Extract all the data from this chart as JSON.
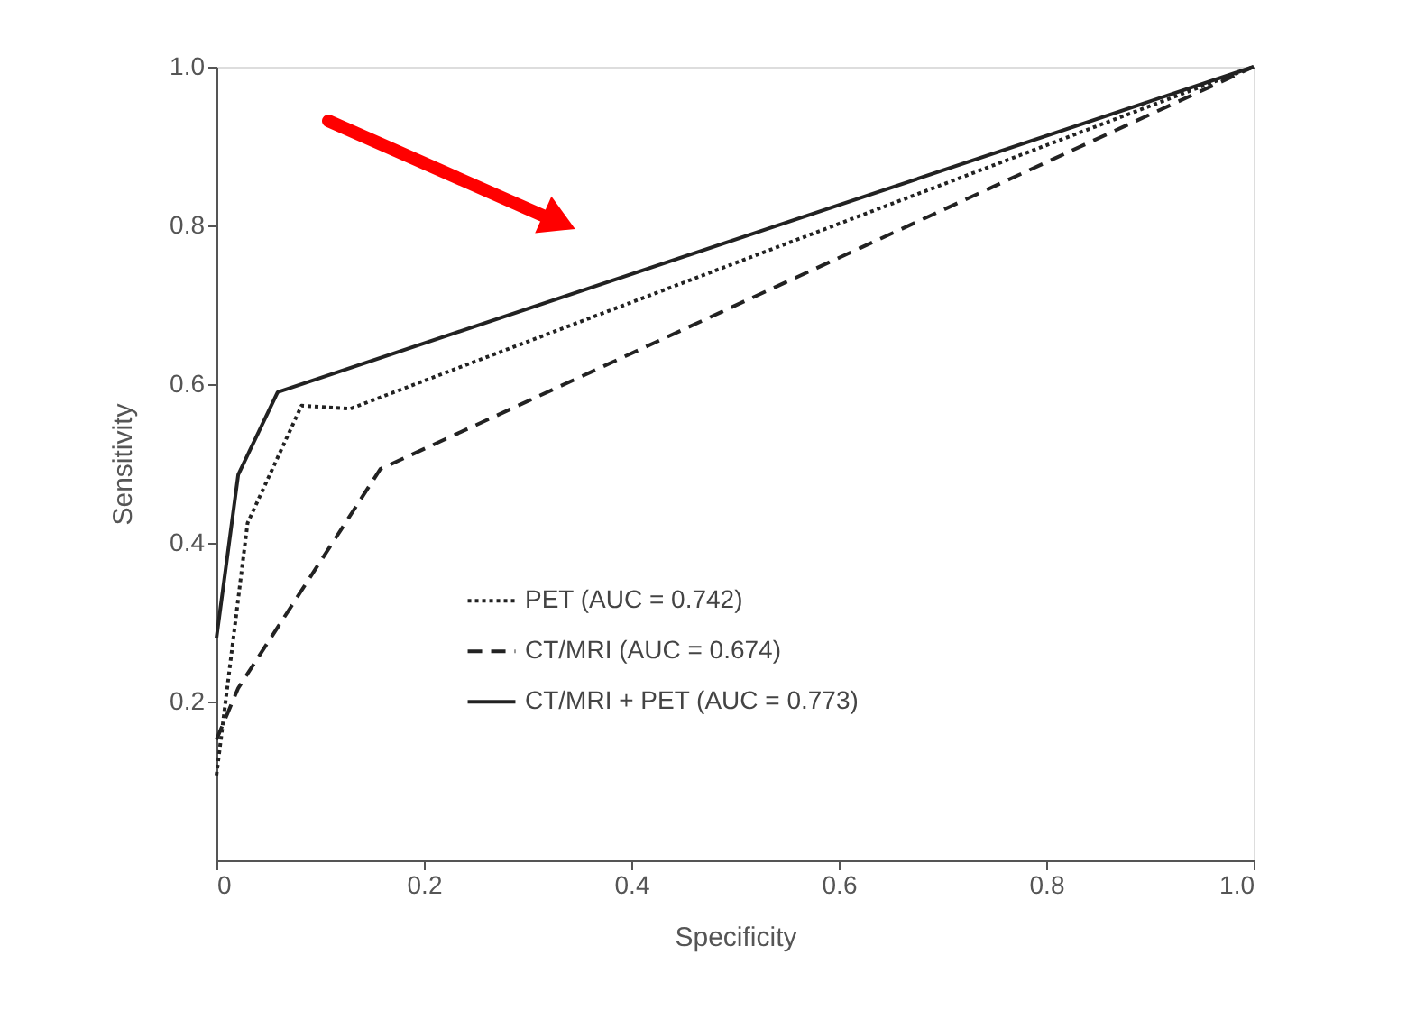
{
  "chart_data": {
    "type": "line",
    "xlabel": "Specificity",
    "ylabel": "Sensitivity",
    "xlim": [
      0,
      1.0
    ],
    "ylim": [
      0,
      1.0
    ],
    "xticks": [
      {
        "value": 0,
        "label": "0"
      },
      0.2,
      0.4,
      0.6,
      0.8,
      {
        "value": 1.0,
        "label": "1.0"
      }
    ],
    "yticks": [
      0.2,
      0.4,
      0.6,
      0.8,
      {
        "value": 1.0,
        "label": "1.0"
      }
    ],
    "grid": false,
    "legend": "bottom",
    "marker": "none",
    "series": [
      {
        "name": "PET (AUC = 0.742)",
        "color": "#222222",
        "line_style": "dotted",
        "x": [
          0,
          0.03,
          0.082,
          0.129,
          1.0
        ],
        "values": [
          0.107,
          0.425,
          0.573,
          0.569,
          1.0
        ]
      },
      {
        "name": "CT/MRI (AUC = 0.674)",
        "color": "#222222",
        "line_style": "dashed",
        "x": [
          0,
          0.021,
          0.158,
          1.0
        ],
        "values": [
          0.152,
          0.217,
          0.493,
          1.0
        ]
      },
      {
        "name": "CT/MRI + PET (AUC = 0.773)",
        "color": "#222222",
        "line_style": "solid",
        "x": [
          0,
          0.021,
          0.059,
          1.0
        ],
        "values": [
          0.28,
          0.486,
          0.59,
          1.0
        ]
      }
    ]
  }
}
